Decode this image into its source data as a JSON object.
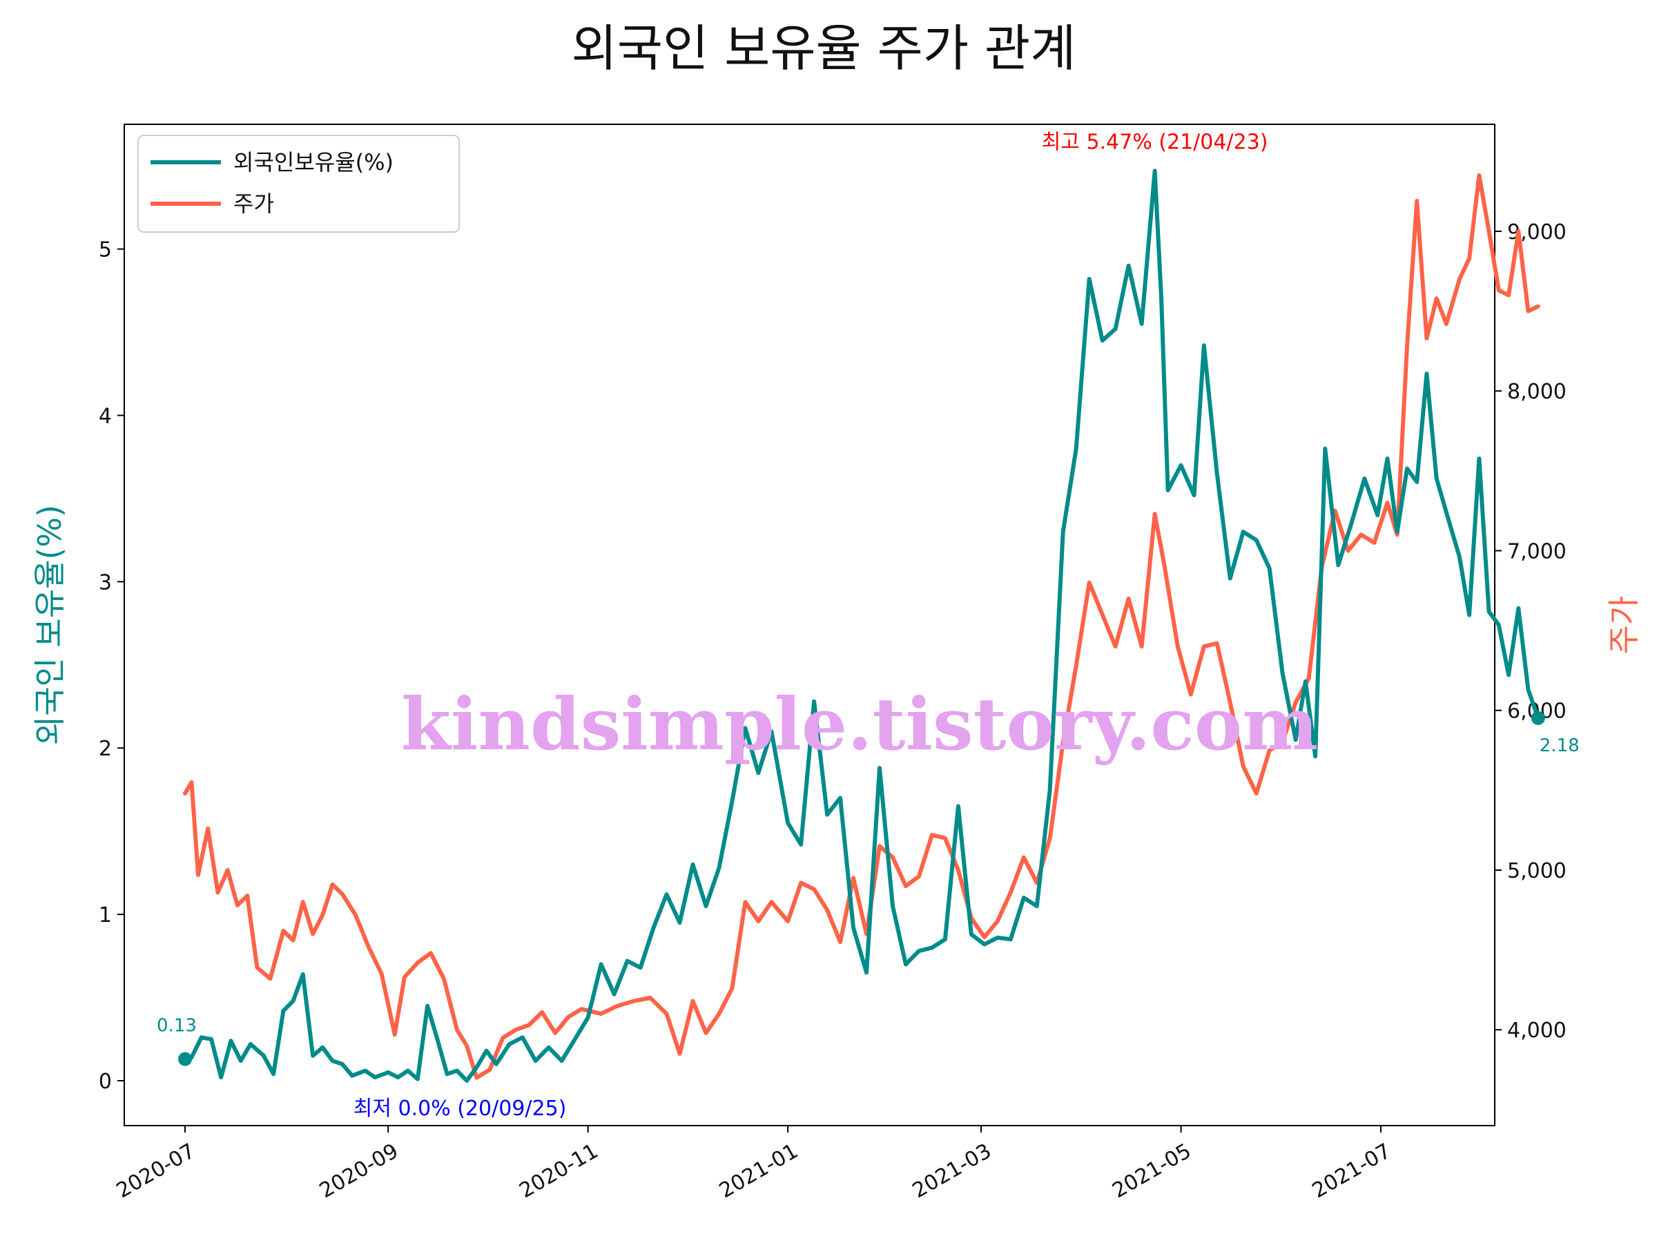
{
  "chart_data": {
    "type": "line",
    "title": "외국인 보유율 주가 관계",
    "x_ticks": [
      "2020-07",
      "2020-09",
      "2020-11",
      "2021-01",
      "2021-03",
      "2021-05",
      "2021-07"
    ],
    "y_left": {
      "label": "외국인 보유율(%)",
      "ylim": [
        -0.27,
        5.75
      ],
      "ticks": [
        "0",
        "1",
        "2",
        "3",
        "4",
        "5"
      ],
      "tick_values": [
        0,
        1,
        2,
        3,
        4,
        5
      ],
      "color": "#008b8b"
    },
    "y_right": {
      "label": "주가",
      "ylim": [
        3400,
        9670
      ],
      "ticks": [
        "4,000",
        "5,000",
        "6,000",
        "7,000",
        "8,000",
        "9,000"
      ],
      "tick_values": [
        4000,
        5000,
        6000,
        7000,
        8000,
        9000
      ],
      "color": "#ff6347"
    },
    "series": [
      {
        "name": "외국인보유율(%)",
        "axis": "left",
        "color": "#008b8b",
        "points": [
          [
            "2020-07-01",
            0.13
          ],
          [
            "2020-07-03",
            0.14
          ],
          [
            "2020-07-06",
            0.26
          ],
          [
            "2020-07-09",
            0.25
          ],
          [
            "2020-07-12",
            0.02
          ],
          [
            "2020-07-15",
            0.24
          ],
          [
            "2020-07-18",
            0.12
          ],
          [
            "2020-07-21",
            0.22
          ],
          [
            "2020-07-25",
            0.15
          ],
          [
            "2020-07-28",
            0.04
          ],
          [
            "2020-07-31",
            0.42
          ],
          [
            "2020-08-03",
            0.48
          ],
          [
            "2020-08-06",
            0.64
          ],
          [
            "2020-08-09",
            0.15
          ],
          [
            "2020-08-12",
            0.2
          ],
          [
            "2020-08-15",
            0.12
          ],
          [
            "2020-08-18",
            0.1
          ],
          [
            "2020-08-21",
            0.03
          ],
          [
            "2020-08-25",
            0.06
          ],
          [
            "2020-08-28",
            0.02
          ],
          [
            "2020-09-01",
            0.05
          ],
          [
            "2020-09-04",
            0.02
          ],
          [
            "2020-09-07",
            0.06
          ],
          [
            "2020-09-10",
            0.01
          ],
          [
            "2020-09-13",
            0.45
          ],
          [
            "2020-09-16",
            0.25
          ],
          [
            "2020-09-19",
            0.04
          ],
          [
            "2020-09-22",
            0.06
          ],
          [
            "2020-09-25",
            0.0
          ],
          [
            "2020-09-28",
            0.08
          ],
          [
            "2020-10-01",
            0.18
          ],
          [
            "2020-10-04",
            0.1
          ],
          [
            "2020-10-08",
            0.22
          ],
          [
            "2020-10-12",
            0.26
          ],
          [
            "2020-10-16",
            0.12
          ],
          [
            "2020-10-20",
            0.2
          ],
          [
            "2020-10-24",
            0.12
          ],
          [
            "2020-10-28",
            0.25
          ],
          [
            "2020-11-01",
            0.38
          ],
          [
            "2020-11-05",
            0.7
          ],
          [
            "2020-11-09",
            0.52
          ],
          [
            "2020-11-13",
            0.72
          ],
          [
            "2020-11-17",
            0.68
          ],
          [
            "2020-11-21",
            0.92
          ],
          [
            "2020-11-25",
            1.12
          ],
          [
            "2020-11-29",
            0.95
          ],
          [
            "2020-12-03",
            1.3
          ],
          [
            "2020-12-07",
            1.05
          ],
          [
            "2020-12-11",
            1.28
          ],
          [
            "2020-12-15",
            1.68
          ],
          [
            "2020-12-19",
            2.12
          ],
          [
            "2020-12-23",
            1.85
          ],
          [
            "2020-12-27",
            2.1
          ],
          [
            "2021-01-01",
            1.55
          ],
          [
            "2021-01-05",
            1.42
          ],
          [
            "2021-01-09",
            2.28
          ],
          [
            "2021-01-13",
            1.6
          ],
          [
            "2021-01-17",
            1.7
          ],
          [
            "2021-01-21",
            0.92
          ],
          [
            "2021-01-25",
            0.65
          ],
          [
            "2021-01-29",
            1.88
          ],
          [
            "2021-02-02",
            1.05
          ],
          [
            "2021-02-06",
            0.7
          ],
          [
            "2021-02-10",
            0.78
          ],
          [
            "2021-02-14",
            0.8
          ],
          [
            "2021-02-18",
            0.85
          ],
          [
            "2021-02-22",
            1.65
          ],
          [
            "2021-02-26",
            0.88
          ],
          [
            "2021-03-02",
            0.82
          ],
          [
            "2021-03-06",
            0.86
          ],
          [
            "2021-03-10",
            0.85
          ],
          [
            "2021-03-14",
            1.1
          ],
          [
            "2021-03-18",
            1.05
          ],
          [
            "2021-03-22",
            1.75
          ],
          [
            "2021-03-26",
            3.3
          ],
          [
            "2021-03-30",
            3.8
          ],
          [
            "2021-04-03",
            4.82
          ],
          [
            "2021-04-07",
            4.45
          ],
          [
            "2021-04-11",
            4.52
          ],
          [
            "2021-04-15",
            4.9
          ],
          [
            "2021-04-19",
            4.55
          ],
          [
            "2021-04-23",
            5.47
          ],
          [
            "2021-04-25",
            4.7
          ],
          [
            "2021-04-27",
            3.55
          ],
          [
            "2021-05-01",
            3.7
          ],
          [
            "2021-05-05",
            3.52
          ],
          [
            "2021-05-08",
            4.42
          ],
          [
            "2021-05-12",
            3.65
          ],
          [
            "2021-05-16",
            3.02
          ],
          [
            "2021-05-20",
            3.3
          ],
          [
            "2021-05-24",
            3.25
          ],
          [
            "2021-05-28",
            3.08
          ],
          [
            "2021-06-01",
            2.45
          ],
          [
            "2021-06-05",
            2.05
          ],
          [
            "2021-06-08",
            2.4
          ],
          [
            "2021-06-11",
            1.95
          ],
          [
            "2021-06-14",
            3.8
          ],
          [
            "2021-06-18",
            3.1
          ],
          [
            "2021-06-22",
            3.35
          ],
          [
            "2021-06-26",
            3.62
          ],
          [
            "2021-06-30",
            3.4
          ],
          [
            "2021-07-03",
            3.74
          ],
          [
            "2021-07-06",
            3.3
          ],
          [
            "2021-07-09",
            3.68
          ],
          [
            "2021-07-12",
            3.6
          ],
          [
            "2021-07-15",
            4.25
          ],
          [
            "2021-07-18",
            3.62
          ],
          [
            "2021-07-22",
            3.35
          ],
          [
            "2021-07-25",
            3.15
          ],
          [
            "2021-07-28",
            2.8
          ],
          [
            "2021-07-31",
            3.74
          ],
          [
            "2021-08-03",
            2.82
          ],
          [
            "2021-08-06",
            2.74
          ],
          [
            "2021-08-09",
            2.44
          ],
          [
            "2021-08-12",
            2.84
          ],
          [
            "2021-08-15",
            2.35
          ],
          [
            "2021-08-18",
            2.18
          ]
        ]
      },
      {
        "name": "주가",
        "axis": "right",
        "color": "#ff6347",
        "points": [
          [
            "2020-07-01",
            5480
          ],
          [
            "2020-07-03",
            5550
          ],
          [
            "2020-07-05",
            4970
          ],
          [
            "2020-07-08",
            5260
          ],
          [
            "2020-07-11",
            4860
          ],
          [
            "2020-07-14",
            5000
          ],
          [
            "2020-07-17",
            4780
          ],
          [
            "2020-07-20",
            4840
          ],
          [
            "2020-07-23",
            4390
          ],
          [
            "2020-07-27",
            4320
          ],
          [
            "2020-07-31",
            4620
          ],
          [
            "2020-08-03",
            4560
          ],
          [
            "2020-08-06",
            4800
          ],
          [
            "2020-08-09",
            4600
          ],
          [
            "2020-08-12",
            4720
          ],
          [
            "2020-08-15",
            4910
          ],
          [
            "2020-08-18",
            4850
          ],
          [
            "2020-08-22",
            4720
          ],
          [
            "2020-08-26",
            4520
          ],
          [
            "2020-08-30",
            4350
          ],
          [
            "2020-09-03",
            3970
          ],
          [
            "2020-09-06",
            4330
          ],
          [
            "2020-09-10",
            4420
          ],
          [
            "2020-09-14",
            4480
          ],
          [
            "2020-09-18",
            4320
          ],
          [
            "2020-09-22",
            4000
          ],
          [
            "2020-09-25",
            3900
          ],
          [
            "2020-09-28",
            3700
          ],
          [
            "2020-10-02",
            3750
          ],
          [
            "2020-10-06",
            3950
          ],
          [
            "2020-10-10",
            4000
          ],
          [
            "2020-10-14",
            4030
          ],
          [
            "2020-10-18",
            4110
          ],
          [
            "2020-10-22",
            3980
          ],
          [
            "2020-10-26",
            4080
          ],
          [
            "2020-10-30",
            4130
          ],
          [
            "2020-11-05",
            4100
          ],
          [
            "2020-11-10",
            4150
          ],
          [
            "2020-11-15",
            4180
          ],
          [
            "2020-11-20",
            4200
          ],
          [
            "2020-11-25",
            4100
          ],
          [
            "2020-11-29",
            3850
          ],
          [
            "2020-12-03",
            4180
          ],
          [
            "2020-12-07",
            3980
          ],
          [
            "2020-12-11",
            4100
          ],
          [
            "2020-12-15",
            4260
          ],
          [
            "2020-12-19",
            4800
          ],
          [
            "2020-12-23",
            4680
          ],
          [
            "2020-12-27",
            4800
          ],
          [
            "2021-01-01",
            4680
          ],
          [
            "2021-01-05",
            4920
          ],
          [
            "2021-01-09",
            4880
          ],
          [
            "2021-01-13",
            4750
          ],
          [
            "2021-01-17",
            4550
          ],
          [
            "2021-01-21",
            4950
          ],
          [
            "2021-01-25",
            4600
          ],
          [
            "2021-01-29",
            5150
          ],
          [
            "2021-02-02",
            5080
          ],
          [
            "2021-02-06",
            4900
          ],
          [
            "2021-02-10",
            4960
          ],
          [
            "2021-02-14",
            5220
          ],
          [
            "2021-02-18",
            5200
          ],
          [
            "2021-02-22",
            5000
          ],
          [
            "2021-02-26",
            4700
          ],
          [
            "2021-03-02",
            4580
          ],
          [
            "2021-03-06",
            4680
          ],
          [
            "2021-03-10",
            4860
          ],
          [
            "2021-03-14",
            5080
          ],
          [
            "2021-03-18",
            4920
          ],
          [
            "2021-03-22",
            5200
          ],
          [
            "2021-03-26",
            5800
          ],
          [
            "2021-03-30",
            6280
          ],
          [
            "2021-04-03",
            6800
          ],
          [
            "2021-04-07",
            6600
          ],
          [
            "2021-04-11",
            6400
          ],
          [
            "2021-04-15",
            6700
          ],
          [
            "2021-04-19",
            6400
          ],
          [
            "2021-04-23",
            7230
          ],
          [
            "2021-04-26",
            6900
          ],
          [
            "2021-04-30",
            6400
          ],
          [
            "2021-05-04",
            6100
          ],
          [
            "2021-05-08",
            6400
          ],
          [
            "2021-05-12",
            6420
          ],
          [
            "2021-05-16",
            6050
          ],
          [
            "2021-05-20",
            5650
          ],
          [
            "2021-05-24",
            5480
          ],
          [
            "2021-05-28",
            5750
          ],
          [
            "2021-06-01",
            5800
          ],
          [
            "2021-06-05",
            6050
          ],
          [
            "2021-06-09",
            6200
          ],
          [
            "2021-06-13",
            6900
          ],
          [
            "2021-06-17",
            7250
          ],
          [
            "2021-06-21",
            7000
          ],
          [
            "2021-06-25",
            7100
          ],
          [
            "2021-06-29",
            7050
          ],
          [
            "2021-07-03",
            7300
          ],
          [
            "2021-07-06",
            7100
          ],
          [
            "2021-07-09",
            8280
          ],
          [
            "2021-07-12",
            9190
          ],
          [
            "2021-07-15",
            8330
          ],
          [
            "2021-07-18",
            8580
          ],
          [
            "2021-07-21",
            8420
          ],
          [
            "2021-07-25",
            8700
          ],
          [
            "2021-07-28",
            8830
          ],
          [
            "2021-07-31",
            9350
          ],
          [
            "2021-08-03",
            9000
          ],
          [
            "2021-08-06",
            8630
          ],
          [
            "2021-08-09",
            8600
          ],
          [
            "2021-08-12",
            9000
          ],
          [
            "2021-08-15",
            8500
          ],
          [
            "2021-08-18",
            8530
          ]
        ]
      }
    ],
    "legend": {
      "placement": "top-left",
      "entries": [
        "외국인보유율(%)",
        "주가"
      ]
    },
    "annotations": {
      "max": {
        "text": "최고 5.47% (21/04/23)",
        "date": "2021-04-23",
        "value": 5.47,
        "color": "#ff0000"
      },
      "min": {
        "text": "최저 0.0% (20/09/25)",
        "date": "2020-09-25",
        "value": 0.0,
        "color": "#0000ff"
      },
      "first": {
        "text": "0.13",
        "date": "2020-07-01",
        "value": 0.13,
        "color": "#008b8b"
      },
      "last": {
        "text": "2.18",
        "date": "2021-08-18",
        "value": 2.18,
        "color": "#008b8b"
      }
    },
    "watermark": "kindsimple.tistory.com",
    "grid": false
  }
}
